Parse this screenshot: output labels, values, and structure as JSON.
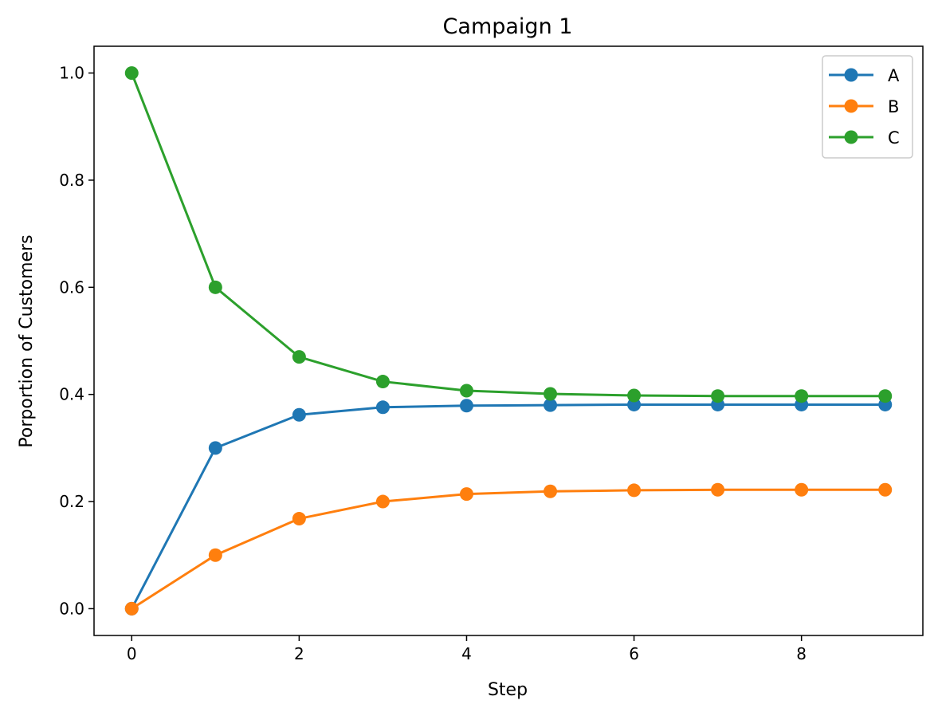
{
  "chart_data": {
    "type": "line",
    "title": "Campaign 1",
    "xlabel": "Step",
    "ylabel": "Porportion of Customers",
    "x": [
      0,
      1,
      2,
      3,
      4,
      5,
      6,
      7,
      8,
      9
    ],
    "xlim": [
      -0.45,
      9.45
    ],
    "ylim": [
      -0.05,
      1.05
    ],
    "xticks": [
      0,
      2,
      4,
      6,
      8
    ],
    "yticks": [
      0.0,
      0.2,
      0.4,
      0.6,
      0.8,
      1.0
    ],
    "xtick_labels": [
      "0",
      "2",
      "4",
      "6",
      "8"
    ],
    "ytick_labels": [
      "0.0",
      "0.2",
      "0.4",
      "0.6",
      "0.8",
      "1.0"
    ],
    "grid": false,
    "legend_position": "top-right",
    "markers": "circle",
    "series": [
      {
        "name": "A",
        "color": "#1f77b4",
        "values": [
          0.0,
          0.3,
          0.362,
          0.376,
          0.379,
          0.38,
          0.381,
          0.381,
          0.381,
          0.381
        ]
      },
      {
        "name": "B",
        "color": "#ff7f0e",
        "values": [
          0.0,
          0.1,
          0.168,
          0.2,
          0.214,
          0.219,
          0.221,
          0.222,
          0.222,
          0.222
        ]
      },
      {
        "name": "C",
        "color": "#2ca02c",
        "values": [
          1.0,
          0.6,
          0.47,
          0.424,
          0.407,
          0.401,
          0.398,
          0.397,
          0.397,
          0.397
        ]
      }
    ]
  }
}
